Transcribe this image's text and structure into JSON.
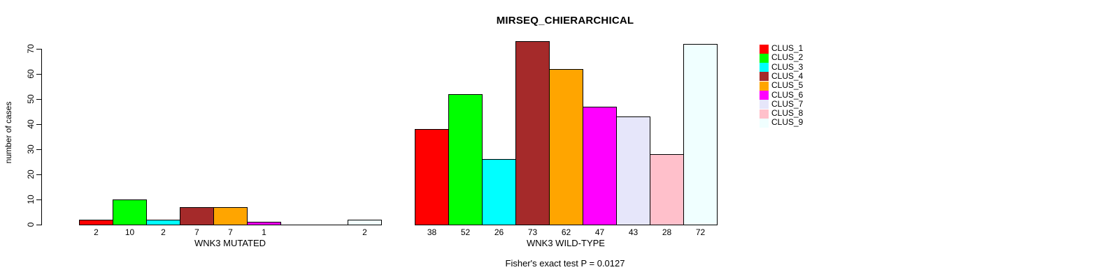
{
  "chart_data": {
    "type": "bar",
    "title": "MIRSEQ_CHIERARCHICAL",
    "ylabel": "number of cases",
    "footnote": "Fisher's exact test P = 0.0127",
    "ylim": [
      0,
      70
    ],
    "yticks": [
      0,
      10,
      20,
      30,
      40,
      50,
      60,
      70
    ],
    "grid": false,
    "legend_position": "top-right",
    "categories": [
      "CLUS_1",
      "CLUS_2",
      "CLUS_3",
      "CLUS_4",
      "CLUS_5",
      "CLUS_6",
      "CLUS_7",
      "CLUS_8",
      "CLUS_9"
    ],
    "colors": [
      "#FF0000",
      "#00FF00",
      "#00FFFF",
      "#A52A2A",
      "#FFA500",
      "#FF00FF",
      "#E6E6FA",
      "#FFC0CB",
      "#F0FFFF"
    ],
    "bar_border_color": "#000000",
    "groups": [
      {
        "label": "WNK3 MUTATED",
        "values": [
          2,
          10,
          2,
          7,
          7,
          1,
          0,
          0,
          2
        ]
      },
      {
        "label": "WNK3 WILD-TYPE",
        "values": [
          38,
          52,
          26,
          73,
          62,
          47,
          43,
          28,
          72
        ]
      }
    ]
  }
}
